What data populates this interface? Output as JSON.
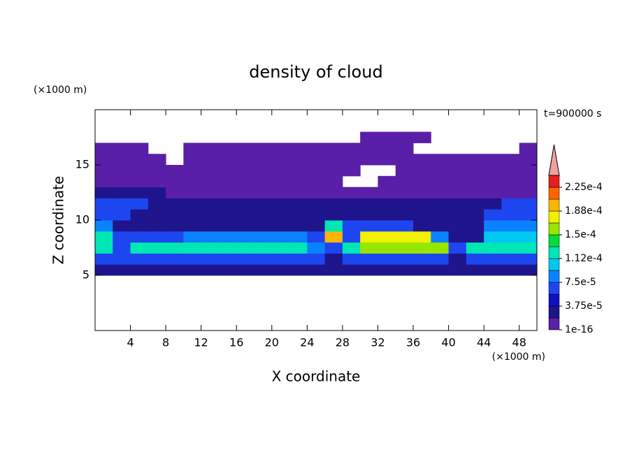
{
  "chart_data": {
    "type": "contour",
    "title": "density of cloud",
    "annotation": "t=900000 s",
    "xlabel": "X coordinate",
    "ylabel": "Z coordinate",
    "xunit": "(×1000 m)",
    "yunit": "(×1000 m)",
    "xlim": [
      0,
      50
    ],
    "ylim": [
      0,
      20
    ],
    "xticks": [
      4,
      8,
      12,
      16,
      20,
      24,
      28,
      32,
      36,
      40,
      44,
      48
    ],
    "yticks": [
      5,
      10,
      15
    ],
    "x": [
      1,
      3,
      5,
      7,
      9,
      11,
      13,
      15,
      17,
      19,
      21,
      23,
      25,
      27,
      29,
      31,
      33,
      35,
      37,
      39,
      41,
      43,
      45,
      47,
      49
    ],
    "z": [
      5.5,
      6.5,
      7.5,
      8.5,
      9.5,
      10.5,
      11.5,
      12.5,
      13.5,
      14.5,
      15.5,
      16.5,
      17.5
    ],
    "values": [
      [
        2e-05,
        2e-05,
        2e-05,
        2e-05,
        2e-05,
        2e-05,
        2e-05,
        2e-05,
        2e-05,
        2e-05,
        2e-05,
        2e-05,
        2e-05,
        2e-05,
        2e-05,
        2e-05,
        2e-05,
        2e-05,
        2e-05,
        2e-05,
        2e-05,
        2e-05,
        2e-05,
        2e-05,
        2e-05
      ],
      [
        6e-05,
        6e-05,
        6e-05,
        6e-05,
        6e-05,
        6e-05,
        6e-05,
        6e-05,
        6e-05,
        6e-05,
        6e-05,
        6e-05,
        6e-05,
        3e-05,
        6e-05,
        6e-05,
        6e-05,
        6e-05,
        6e-05,
        6e-05,
        3e-05,
        6e-05,
        6e-05,
        6e-05,
        6e-05
      ],
      [
        0.00012,
        6e-05,
        0.00013,
        0.00013,
        0.00013,
        0.00013,
        0.00013,
        0.00013,
        0.00013,
        0.00013,
        0.00013,
        0.00013,
        9e-05,
        6e-05,
        0.00012,
        0.00016,
        0.00016,
        0.00016,
        0.00016,
        0.00016,
        6e-05,
        0.00012,
        0.00012,
        0.00012,
        0.00012
      ],
      [
        0.00012,
        6e-05,
        6e-05,
        6e-05,
        6e-05,
        9e-05,
        9e-05,
        9e-05,
        9e-05,
        9e-05,
        9e-05,
        9e-05,
        6e-05,
        0.000195,
        6e-05,
        0.00018,
        0.00018,
        0.00018,
        0.00018,
        9e-05,
        3e-05,
        3e-05,
        0.00011,
        0.00011,
        0.00011
      ],
      [
        9e-05,
        3e-05,
        3e-05,
        3e-05,
        3e-05,
        3e-05,
        3e-05,
        3e-05,
        3e-05,
        3e-05,
        3e-05,
        3e-05,
        3e-05,
        0.00012,
        6e-05,
        6e-05,
        6e-05,
        6e-05,
        3e-05,
        3e-05,
        3e-05,
        3e-05,
        9e-05,
        9e-05,
        9e-05
      ],
      [
        6e-05,
        6e-05,
        3e-05,
        3e-05,
        3e-05,
        3e-05,
        3e-05,
        3e-05,
        3e-05,
        3e-05,
        3e-05,
        3e-05,
        3e-05,
        3e-05,
        3e-05,
        3e-05,
        3e-05,
        3e-05,
        3e-05,
        3e-05,
        3e-05,
        3e-05,
        6e-05,
        6e-05,
        6e-05
      ],
      [
        6e-05,
        6e-05,
        6e-05,
        2e-05,
        2e-05,
        2e-05,
        2e-05,
        2e-05,
        2e-05,
        2e-05,
        2e-05,
        2e-05,
        2e-05,
        2e-05,
        2e-05,
        2e-05,
        2e-05,
        2e-05,
        2e-05,
        2e-05,
        2e-05,
        2e-05,
        2e-05,
        6e-05,
        6e-05
      ],
      [
        3e-05,
        3e-05,
        3e-05,
        3e-05,
        1e-05,
        1e-05,
        1e-05,
        1e-05,
        1e-05,
        1e-05,
        1e-05,
        1e-05,
        1e-05,
        1e-05,
        1e-05,
        1e-05,
        1e-05,
        1e-05,
        1e-05,
        1e-05,
        1e-05,
        1e-05,
        1e-05,
        1e-05,
        1e-05
      ],
      [
        1e-05,
        1e-05,
        1e-05,
        1e-05,
        1e-05,
        1e-05,
        1e-05,
        1e-05,
        1e-05,
        1e-05,
        1e-05,
        1e-05,
        1e-05,
        1e-05,
        null,
        null,
        1e-05,
        1e-05,
        1e-05,
        1e-05,
        1e-05,
        1e-05,
        1e-05,
        1e-05,
        1e-05
      ],
      [
        1e-05,
        1e-05,
        1e-05,
        1e-05,
        1e-05,
        1e-05,
        1e-05,
        1e-05,
        1e-05,
        1e-05,
        1e-05,
        1e-05,
        1e-05,
        1e-05,
        1e-05,
        null,
        null,
        1e-05,
        1e-05,
        1e-05,
        1e-05,
        1e-05,
        1e-05,
        1e-05,
        1e-05
      ],
      [
        1e-05,
        1e-05,
        1e-05,
        1e-05,
        null,
        1e-05,
        1e-05,
        1e-05,
        1e-05,
        1e-05,
        1e-05,
        1e-05,
        1e-05,
        1e-05,
        1e-05,
        1e-05,
        1e-05,
        1e-05,
        1e-05,
        1e-05,
        1e-05,
        1e-05,
        1e-05,
        1e-05,
        1e-05
      ],
      [
        1e-05,
        1e-05,
        1e-05,
        null,
        null,
        1e-05,
        1e-05,
        1e-05,
        1e-05,
        1e-05,
        1e-05,
        1e-05,
        1e-05,
        1e-05,
        1e-05,
        1e-05,
        1e-05,
        1e-05,
        null,
        null,
        null,
        null,
        null,
        null,
        1e-05
      ],
      [
        null,
        null,
        null,
        null,
        null,
        null,
        null,
        null,
        null,
        null,
        null,
        null,
        null,
        null,
        null,
        1e-05,
        1e-05,
        1e-05,
        1e-05,
        null,
        null,
        null,
        null,
        null,
        null
      ]
    ],
    "colorbar": {
      "ticks": [
        {
          "value": 1e-16,
          "label": "1e-16"
        },
        {
          "value": 3.75e-05,
          "label": "3.75e-5"
        },
        {
          "value": 7.5e-05,
          "label": "7.5e-5"
        },
        {
          "value": 0.000112,
          "label": "1.12e-4"
        },
        {
          "value": 0.00015,
          "label": "1.5e-4"
        },
        {
          "value": 0.000188,
          "label": "1.88e-4"
        },
        {
          "value": 0.000225,
          "label": "2.25e-4"
        }
      ],
      "colors": [
        "#5a1fa8",
        "#1e148c",
        "#1010c0",
        "#1e46f0",
        "#0a82ff",
        "#00c8f0",
        "#00e6b4",
        "#00dc3c",
        "#96e600",
        "#f0f000",
        "#ffb400",
        "#ff6400",
        "#e61e1e"
      ],
      "extend_color": "#f4a0a0"
    }
  }
}
